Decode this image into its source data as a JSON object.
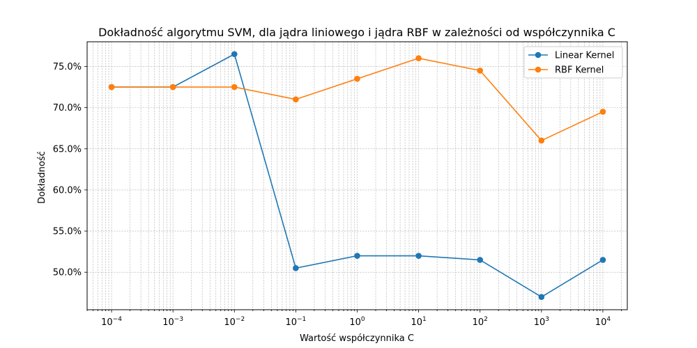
{
  "chart_data": {
    "type": "line",
    "title": "Dokładność algorytmu SVM, dla jądra liniowego i jądra RBF w zależności od współczynnika C",
    "xlabel": "Wartość współczynnika C",
    "ylabel": "Dokładność",
    "xscale": "log",
    "x": [
      0.0001,
      0.001,
      0.01,
      0.1,
      1,
      10,
      100,
      1000,
      10000
    ],
    "xlim": [
      4e-05,
      25000
    ],
    "ylim": [
      0.4545,
      0.78
    ],
    "x_tick_labels": [
      {
        "base": "10",
        "exp": "−4"
      },
      {
        "base": "10",
        "exp": "−3"
      },
      {
        "base": "10",
        "exp": "−2"
      },
      {
        "base": "10",
        "exp": "−1"
      },
      {
        "base": "10",
        "exp": "0"
      },
      {
        "base": "10",
        "exp": "1"
      },
      {
        "base": "10",
        "exp": "2"
      },
      {
        "base": "10",
        "exp": "3"
      },
      {
        "base": "10",
        "exp": "4"
      }
    ],
    "y_ticks": [
      0.5,
      0.55,
      0.6,
      0.65,
      0.7,
      0.75
    ],
    "y_tick_labels": [
      "50.0%",
      "55.0%",
      "60.0%",
      "65.0%",
      "70.0%",
      "75.0%"
    ],
    "grid": true,
    "legend_position": "top-right",
    "series": [
      {
        "name": "Linear Kernel",
        "color": "#1f77b4",
        "values": [
          0.725,
          0.725,
          0.765,
          0.505,
          0.52,
          0.52,
          0.515,
          0.47,
          0.515
        ]
      },
      {
        "name": "RBF Kernel",
        "color": "#ff7f0e",
        "values": [
          0.725,
          0.725,
          0.725,
          0.71,
          0.735,
          0.76,
          0.745,
          0.66,
          0.695
        ]
      }
    ]
  }
}
